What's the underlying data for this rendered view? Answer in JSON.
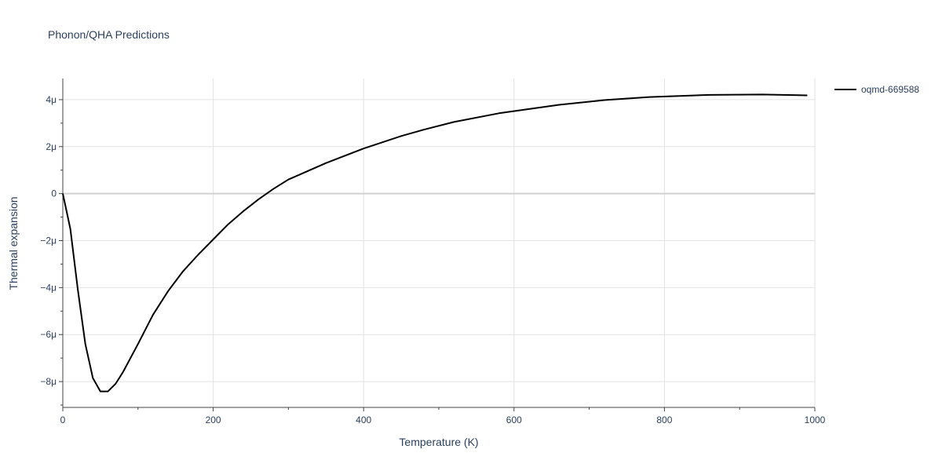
{
  "chart_data": {
    "type": "line",
    "title": "Phonon/QHA Predictions",
    "xlabel": "Temperature (K)",
    "ylabel": "Thermal expansion",
    "xlim": [
      0,
      1000
    ],
    "ylim": [
      -9.1,
      4.9
    ],
    "x_ticks": [
      {
        "value": 0,
        "label": "0"
      },
      {
        "value": 200,
        "label": "200"
      },
      {
        "value": 400,
        "label": "400"
      },
      {
        "value": 600,
        "label": "600"
      },
      {
        "value": 800,
        "label": "800"
      },
      {
        "value": 1000,
        "label": "1000"
      }
    ],
    "y_ticks": [
      {
        "value": 4,
        "label": "4μ"
      },
      {
        "value": 2,
        "label": "2μ"
      },
      {
        "value": 0,
        "label": "0"
      },
      {
        "value": -2,
        "label": "−2μ"
      },
      {
        "value": -4,
        "label": "−4μ"
      },
      {
        "value": -6,
        "label": "−6μ"
      },
      {
        "value": -8,
        "label": "−8μ"
      }
    ],
    "y_unit_note": "values in units of 1e-6 (μ)",
    "grid": true,
    "legend_position": "top-right",
    "series": [
      {
        "name": "oqmd-669588",
        "color": "#000000",
        "x": [
          0,
          10,
          20,
          30,
          40,
          50,
          60,
          70,
          80,
          100,
          120,
          140,
          160,
          180,
          200,
          220,
          240,
          260,
          280,
          300,
          350,
          400,
          450,
          480,
          520,
          580,
          620,
          660,
          720,
          780,
          860,
          930,
          990
        ],
        "y": [
          0,
          -1.5,
          -4.1,
          -6.4,
          -7.85,
          -8.42,
          -8.42,
          -8.1,
          -7.6,
          -6.4,
          -5.15,
          -4.15,
          -3.3,
          -2.6,
          -1.95,
          -1.3,
          -0.75,
          -0.25,
          0.2,
          0.6,
          1.3,
          1.92,
          2.45,
          2.72,
          3.05,
          3.42,
          3.6,
          3.78,
          3.98,
          4.11,
          4.2,
          4.22,
          4.18
        ]
      }
    ]
  }
}
